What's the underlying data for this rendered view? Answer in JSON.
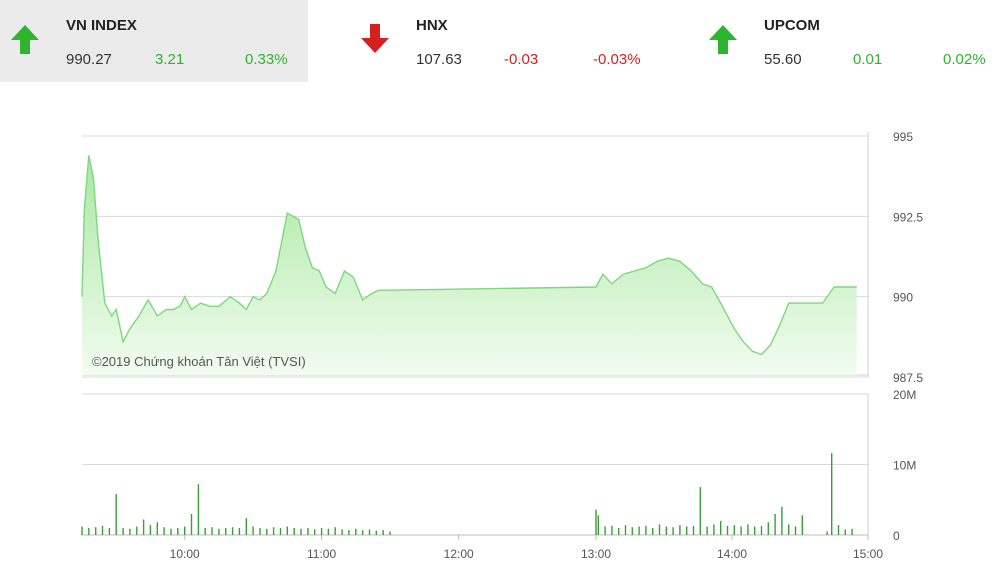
{
  "tickers": [
    {
      "name": "VN INDEX",
      "value": "990.27",
      "change": "3.21",
      "percent": "0.33%",
      "direction": "up",
      "icon": "arrow-up-icon"
    },
    {
      "name": "HNX",
      "value": "107.63",
      "change": "-0.03",
      "percent": "-0.03%",
      "direction": "down",
      "icon": "arrow-down-icon"
    },
    {
      "name": "UPCOM",
      "value": "55.60",
      "change": "0.01",
      "percent": "0.02%",
      "direction": "up",
      "icon": "arrow-up-icon"
    }
  ],
  "colors": {
    "up": "#2db52d",
    "down": "#d42020",
    "line": "#7ed87e",
    "fill_top": "#a8e8a0",
    "fill_bottom": "#f2fcf0",
    "volume": "#3a9e3a"
  },
  "watermark": "©2019 Chứng khoán Tân Việt (TVSI)",
  "chart_data": [
    {
      "type": "area",
      "x_ticks": [
        "10:00",
        "11:00",
        "12:00",
        "13:00",
        "14:00",
        "15:00"
      ],
      "y_ticks": [
        "995",
        "992.5",
        "990",
        "987.5"
      ],
      "ylim": [
        987.5,
        995
      ],
      "grid": true,
      "baseline": 990,
      "x": [
        "09:15",
        "09:16",
        "09:18",
        "09:20",
        "09:22",
        "09:25",
        "09:28",
        "09:30",
        "09:33",
        "09:36",
        "09:40",
        "09:44",
        "09:48",
        "09:52",
        "09:55",
        "09:58",
        "10:00",
        "10:03",
        "10:07",
        "10:11",
        "10:15",
        "10:20",
        "10:24",
        "10:27",
        "10:30",
        "10:33",
        "10:36",
        "10:40",
        "10:45",
        "10:50",
        "10:53",
        "10:56",
        "10:59",
        "11:02",
        "11:06",
        "11:10",
        "11:14",
        "11:18",
        "11:22",
        "11:25",
        "11:30",
        "13:00",
        "13:03",
        "13:07",
        "13:12",
        "13:17",
        "13:22",
        "13:27",
        "13:32",
        "13:37",
        "13:42",
        "13:47",
        "13:51",
        "13:55",
        "13:58",
        "14:01",
        "14:05",
        "14:09",
        "14:13",
        "14:17",
        "14:21",
        "14:25",
        "14:28",
        "14:31",
        "14:35",
        "14:40",
        "14:45",
        "14:46",
        "14:55"
      ],
      "y": [
        990.0,
        992.7,
        994.4,
        993.7,
        991.8,
        989.8,
        989.4,
        989.6,
        988.6,
        989.0,
        989.4,
        989.9,
        989.4,
        989.6,
        989.6,
        989.7,
        990.0,
        989.6,
        989.8,
        989.7,
        989.7,
        990.0,
        989.8,
        989.6,
        990.0,
        989.9,
        990.1,
        990.8,
        992.6,
        992.4,
        991.5,
        990.9,
        990.8,
        990.3,
        990.1,
        990.8,
        990.6,
        989.9,
        990.1,
        990.2,
        990.2,
        990.3,
        990.7,
        990.4,
        990.7,
        990.8,
        990.9,
        991.1,
        991.2,
        991.1,
        990.8,
        990.4,
        990.3,
        989.8,
        989.4,
        989.0,
        988.6,
        988.3,
        988.2,
        988.5,
        989.1,
        989.8,
        989.8,
        989.8,
        989.8,
        989.8,
        990.3,
        990.3,
        990.3
      ]
    },
    {
      "type": "bar",
      "y_ticks": [
        "20M",
        "10M",
        "0"
      ],
      "ylim": [
        0,
        20
      ],
      "x": [
        "09:15",
        "09:18",
        "09:21",
        "09:24",
        "09:27",
        "09:30",
        "09:33",
        "09:36",
        "09:39",
        "09:42",
        "09:45",
        "09:48",
        "09:51",
        "09:54",
        "09:57",
        "10:00",
        "10:03",
        "10:06",
        "10:09",
        "10:12",
        "10:15",
        "10:18",
        "10:21",
        "10:24",
        "10:27",
        "10:30",
        "10:33",
        "10:36",
        "10:39",
        "10:42",
        "10:45",
        "10:48",
        "10:51",
        "10:54",
        "10:57",
        "11:00",
        "11:03",
        "11:06",
        "11:09",
        "11:12",
        "11:15",
        "11:18",
        "11:21",
        "11:24",
        "11:27",
        "11:30",
        "13:00",
        "13:01",
        "13:04",
        "13:07",
        "13:10",
        "13:13",
        "13:16",
        "13:19",
        "13:22",
        "13:25",
        "13:28",
        "13:31",
        "13:34",
        "13:37",
        "13:40",
        "13:43",
        "13:46",
        "13:49",
        "13:52",
        "13:55",
        "13:58",
        "14:01",
        "14:04",
        "14:07",
        "14:10",
        "14:13",
        "14:16",
        "14:19",
        "14:22",
        "14:25",
        "14:28",
        "14:31",
        "14:42",
        "14:44",
        "14:47",
        "14:50",
        "14:53"
      ],
      "values": [
        1.2,
        1.0,
        1.1,
        1.3,
        1.0,
        5.8,
        1.0,
        0.9,
        1.2,
        2.2,
        1.4,
        1.8,
        1.1,
        0.9,
        1.0,
        1.2,
        3.0,
        7.2,
        1.0,
        1.1,
        0.9,
        1.0,
        1.1,
        1.0,
        2.4,
        1.2,
        1.0,
        0.9,
        1.1,
        1.0,
        1.2,
        1.0,
        0.9,
        1.0,
        0.8,
        1.0,
        0.9,
        1.1,
        0.8,
        0.7,
        0.9,
        0.7,
        0.8,
        0.6,
        0.7,
        0.5,
        3.6,
        2.8,
        1.2,
        1.3,
        1.0,
        1.4,
        1.1,
        1.2,
        1.3,
        1.0,
        1.5,
        1.2,
        1.1,
        1.4,
        1.2,
        1.3,
        6.8,
        1.2,
        1.5,
        2.0,
        1.3,
        1.4,
        1.2,
        1.5,
        1.2,
        1.3,
        1.8,
        3.0,
        4.0,
        1.5,
        1.2,
        2.8,
        0.5,
        11.6,
        1.4,
        0.8,
        0.9
      ]
    }
  ]
}
